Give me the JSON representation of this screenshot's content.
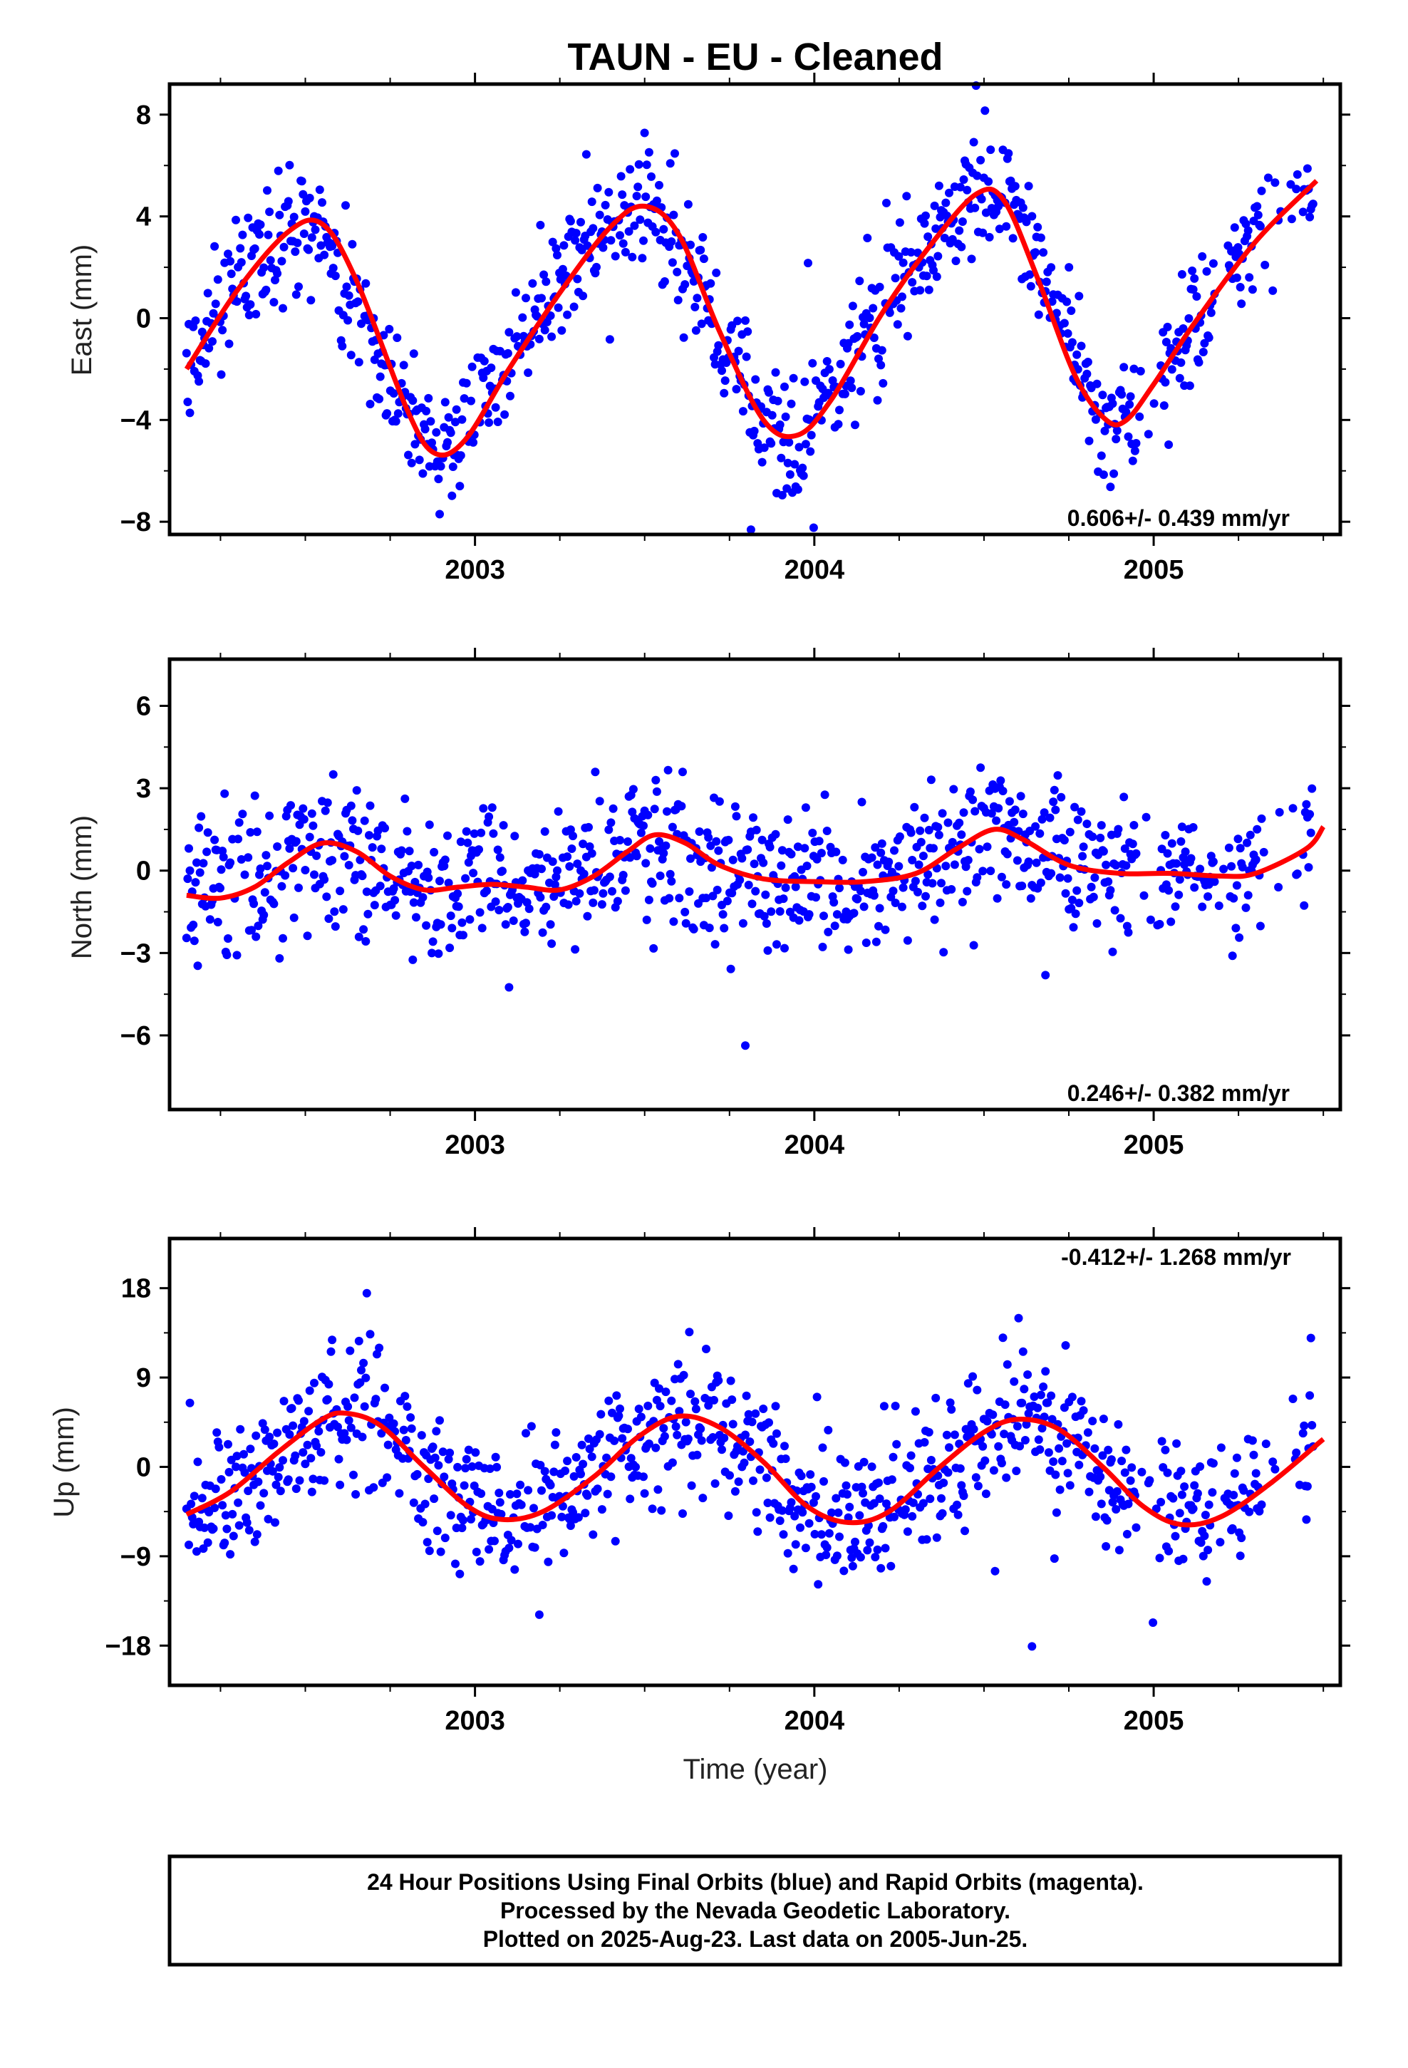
{
  "title": "TAUN  - EU - Cleaned",
  "colors": {
    "points": "#0000ff",
    "fit": "#ff0000",
    "frame": "#000000"
  },
  "chart_data": [
    {
      "type": "scatter",
      "ylabel": "East (mm)",
      "xlim": [
        2002.1,
        2005.55
      ],
      "ylim": [
        -8.5,
        9.2
      ],
      "yticks": [
        -8,
        -4,
        0,
        4,
        8
      ],
      "yticklabels": [
        "−8",
        "−4",
        "0",
        "4",
        "8"
      ],
      "xticks": [
        2003,
        2004,
        2005
      ],
      "xticklabels": [
        "2003",
        "2004",
        "2005"
      ],
      "rate_text": "0.606+/- 0.439 mm/yr",
      "series": [
        {
          "values": [
            [
              2002.15,
              -1.8
            ],
            [
              2002.3,
              1.2
            ],
            [
              2002.45,
              3.5
            ],
            [
              2002.55,
              3.6
            ],
            [
              2002.7,
              -1.0
            ],
            [
              2002.8,
              -4.2
            ],
            [
              2002.88,
              -5.4
            ],
            [
              2002.95,
              -4.8
            ],
            [
              2003.1,
              -1.5
            ],
            [
              2003.25,
              1.5
            ],
            [
              2003.4,
              3.8
            ],
            [
              2003.5,
              4.4
            ],
            [
              2003.6,
              3.2
            ],
            [
              2003.72,
              -0.8
            ],
            [
              2003.85,
              -4.2
            ],
            [
              2003.95,
              -4.7
            ],
            [
              2004.05,
              -3.0
            ],
            [
              2004.2,
              0.5
            ],
            [
              2004.35,
              3.2
            ],
            [
              2004.5,
              4.9
            ],
            [
              2004.57,
              4.7
            ],
            [
              2004.65,
              2.5
            ],
            [
              2004.75,
              -1.2
            ],
            [
              2004.83,
              -3.6
            ],
            [
              2004.9,
              -4.0
            ],
            [
              2005.0,
              -3.0
            ],
            [
              2005.15,
              0.5
            ],
            [
              2005.3,
              3.2
            ],
            [
              2005.5,
              5.6
            ]
          ]
        }
      ],
      "fit": [
        [
          2002.15,
          -2.0
        ],
        [
          2002.3,
          1.1
        ],
        [
          2002.45,
          3.4
        ],
        [
          2002.55,
          3.7
        ],
        [
          2002.65,
          1.5
        ],
        [
          2002.8,
          -3.6
        ],
        [
          2002.88,
          -5.3
        ],
        [
          2002.97,
          -4.8
        ],
        [
          2003.1,
          -2.0
        ],
        [
          2003.25,
          1.0
        ],
        [
          2003.4,
          3.6
        ],
        [
          2003.5,
          4.4
        ],
        [
          2003.6,
          3.3
        ],
        [
          2003.72,
          -0.5
        ],
        [
          2003.85,
          -4.0
        ],
        [
          2003.95,
          -4.6
        ],
        [
          2004.05,
          -3.2
        ],
        [
          2004.2,
          0.2
        ],
        [
          2004.35,
          3.0
        ],
        [
          2004.48,
          4.9
        ],
        [
          2004.56,
          4.6
        ],
        [
          2004.66,
          1.5
        ],
        [
          2004.77,
          -2.3
        ],
        [
          2004.86,
          -4.0
        ],
        [
          2004.92,
          -4.0
        ],
        [
          2005.0,
          -2.6
        ],
        [
          2005.12,
          -0.2
        ],
        [
          2005.3,
          3.0
        ],
        [
          2005.48,
          5.4
        ]
      ]
    },
    {
      "type": "scatter",
      "ylabel": "North (mm)",
      "xlim": [
        2002.1,
        2005.55
      ],
      "ylim": [
        -8.7,
        7.7
      ],
      "yticks": [
        -6,
        -3,
        0,
        3,
        6
      ],
      "yticklabels": [
        "−6",
        "−3",
        "0",
        "3",
        "6"
      ],
      "xticks": [
        2003,
        2004,
        2005
      ],
      "xticklabels": [
        "2003",
        "2004",
        "2005"
      ],
      "rate_text": "0.246+/- 0.382 mm/yr",
      "series": [
        {
          "values": [
            [
              2002.15,
              -0.8
            ],
            [
              2002.3,
              -0.5
            ],
            [
              2002.5,
              0.9
            ],
            [
              2002.6,
              0.9
            ],
            [
              2002.8,
              -0.7
            ],
            [
              2003.0,
              -0.5
            ],
            [
              2003.2,
              -0.7
            ],
            [
              2003.35,
              0.1
            ],
            [
              2003.5,
              1.2
            ],
            [
              2003.65,
              0.3
            ],
            [
              2003.85,
              -0.4
            ],
            [
              2004.0,
              -0.4
            ],
            [
              2004.2,
              -0.3
            ],
            [
              2004.35,
              0.5
            ],
            [
              2004.5,
              1.5
            ],
            [
              2004.7,
              0.3
            ],
            [
              2004.9,
              -0.1
            ],
            [
              2005.1,
              -0.1
            ],
            [
              2005.3,
              0.3
            ],
            [
              2005.5,
              1.6
            ]
          ]
        }
      ],
      "fit": [
        [
          2002.15,
          -0.9
        ],
        [
          2002.25,
          -1.0
        ],
        [
          2002.35,
          -0.6
        ],
        [
          2002.45,
          0.3
        ],
        [
          2002.55,
          1.0
        ],
        [
          2002.65,
          0.7
        ],
        [
          2002.75,
          -0.2
        ],
        [
          2002.85,
          -0.7
        ],
        [
          2002.95,
          -0.6
        ],
        [
          2003.05,
          -0.5
        ],
        [
          2003.15,
          -0.6
        ],
        [
          2003.25,
          -0.7
        ],
        [
          2003.35,
          -0.2
        ],
        [
          2003.45,
          0.7
        ],
        [
          2003.53,
          1.3
        ],
        [
          2003.62,
          1.0
        ],
        [
          2003.72,
          0.2
        ],
        [
          2003.85,
          -0.3
        ],
        [
          2004.0,
          -0.4
        ],
        [
          2004.15,
          -0.4
        ],
        [
          2004.3,
          -0.1
        ],
        [
          2004.42,
          0.8
        ],
        [
          2004.53,
          1.5
        ],
        [
          2004.62,
          1.1
        ],
        [
          2004.75,
          0.2
        ],
        [
          2004.9,
          -0.1
        ],
        [
          2005.05,
          -0.1
        ],
        [
          2005.2,
          -0.2
        ],
        [
          2005.3,
          -0.1
        ],
        [
          2005.45,
          0.8
        ],
        [
          2005.5,
          1.6
        ]
      ]
    },
    {
      "type": "scatter",
      "ylabel": "Up (mm)",
      "xlabel": "Time (year)",
      "xlim": [
        2002.1,
        2005.55
      ],
      "ylim": [
        -22,
        23
      ],
      "yticks": [
        -18,
        -9,
        0,
        9,
        18
      ],
      "yticklabels": [
        "−18",
        "−9",
        "0",
        "9",
        "18"
      ],
      "xticks": [
        2003,
        2004,
        2005
      ],
      "xticklabels": [
        "2003",
        "2004",
        "2005"
      ],
      "rate_text": "-0.412+/- 1.268 mm/yr",
      "series": [
        {
          "values": [
            [
              2002.15,
              -4.5
            ],
            [
              2002.3,
              -2.0
            ],
            [
              2002.45,
              2.5
            ],
            [
              2002.6,
              5.3
            ],
            [
              2002.75,
              3.5
            ],
            [
              2002.9,
              -1.5
            ],
            [
              2003.05,
              -5.0
            ],
            [
              2003.2,
              -4.0
            ],
            [
              2003.35,
              -0.5
            ],
            [
              2003.5,
              3.5
            ],
            [
              2003.6,
              5.2
            ],
            [
              2003.75,
              3.0
            ],
            [
              2003.9,
              -1.5
            ],
            [
              2004.05,
              -5.0
            ],
            [
              2004.2,
              -4.0
            ],
            [
              2004.35,
              0.0
            ],
            [
              2004.55,
              4.5
            ],
            [
              2004.65,
              4.5
            ],
            [
              2004.8,
              1.5
            ],
            [
              2004.95,
              -3.0
            ],
            [
              2005.1,
              -5.5
            ],
            [
              2005.3,
              -2.5
            ],
            [
              2005.5,
              2.5
            ]
          ]
        }
      ],
      "fit": [
        [
          2002.15,
          -4.8
        ],
        [
          2002.28,
          -2.5
        ],
        [
          2002.42,
          1.5
        ],
        [
          2002.55,
          4.8
        ],
        [
          2002.62,
          5.4
        ],
        [
          2002.72,
          4.2
        ],
        [
          2002.85,
          0.0
        ],
        [
          2002.98,
          -4.0
        ],
        [
          2003.08,
          -5.3
        ],
        [
          2003.2,
          -4.5
        ],
        [
          2003.35,
          -1.0
        ],
        [
          2003.48,
          3.0
        ],
        [
          2003.6,
          5.1
        ],
        [
          2003.72,
          4.0
        ],
        [
          2003.85,
          0.5
        ],
        [
          2003.98,
          -4.0
        ],
        [
          2004.1,
          -5.6
        ],
        [
          2004.22,
          -4.5
        ],
        [
          2004.37,
          0.0
        ],
        [
          2004.5,
          3.5
        ],
        [
          2004.6,
          4.8
        ],
        [
          2004.72,
          3.8
        ],
        [
          2004.85,
          0.0
        ],
        [
          2004.97,
          -4.0
        ],
        [
          2005.08,
          -5.8
        ],
        [
          2005.2,
          -5.0
        ],
        [
          2005.35,
          -1.5
        ],
        [
          2005.5,
          2.8
        ]
      ]
    }
  ],
  "footer": {
    "line1": "24 Hour Positions Using Final Orbits (blue) and Rapid Orbits (magenta).",
    "line2": "Processed by the Nevada Geodetic Laboratory.",
    "line3": "Plotted on 2025-Aug-23. Last data on 2005-Jun-25."
  }
}
